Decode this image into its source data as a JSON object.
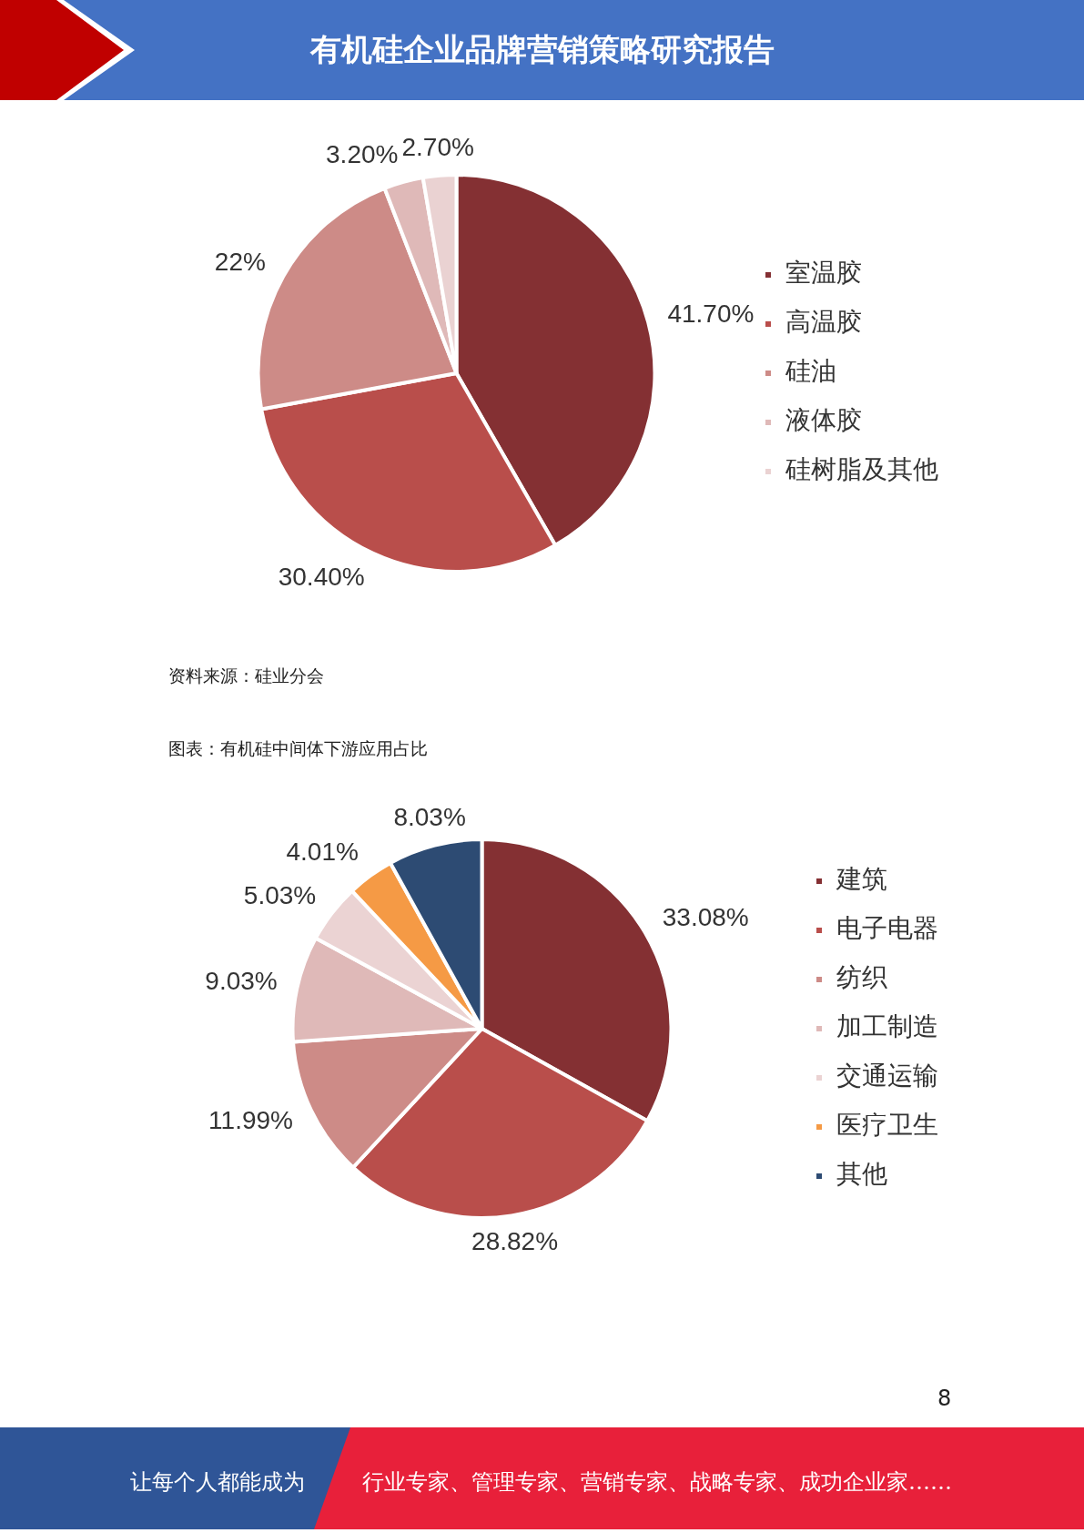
{
  "chart_data": [
    {
      "type": "pie",
      "title": "有机硅企业品牌营销策略研究报告",
      "categories": [
        "室温胶",
        "高温胶",
        "硅油",
        "液体胶",
        "硅树脂及其他"
      ],
      "values": [
        41.7,
        30.4,
        22,
        3.2,
        2.7
      ],
      "value_labels": [
        "41.70%",
        "30.40%",
        "22%",
        "3.20%",
        "2.70%"
      ],
      "colors": [
        "#843033",
        "#b94e4b",
        "#cd8b87",
        "#dfb9b8",
        "#ead2d2"
      ],
      "legend": "right",
      "annotations": [
        "资料来源：硅业分会"
      ]
    },
    {
      "type": "pie",
      "title": "图表：有机硅中间体下游应用占比",
      "categories": [
        "建筑",
        "电子电器",
        "纺织",
        "加工制造",
        "交通运输",
        "医疗卫生",
        "其他"
      ],
      "values": [
        33.08,
        28.82,
        11.99,
        9.03,
        5.03,
        4.01,
        8.03
      ],
      "value_labels": [
        "33.08%",
        "28.82%",
        "11.99%",
        "9.03%",
        "5.03%",
        "4.01%",
        "8.03%"
      ],
      "colors": [
        "#843033",
        "#b94e4b",
        "#cd8b87",
        "#dfb9b8",
        "#ebd3d3",
        "#f59a45",
        "#2d4b73"
      ],
      "legend": "right",
      "annotations": [
        "8",
        "让每个人都能成为",
        "行业专家、管理专家、营销专家、战略专家、成功企业家……"
      ]
    }
  ]
}
